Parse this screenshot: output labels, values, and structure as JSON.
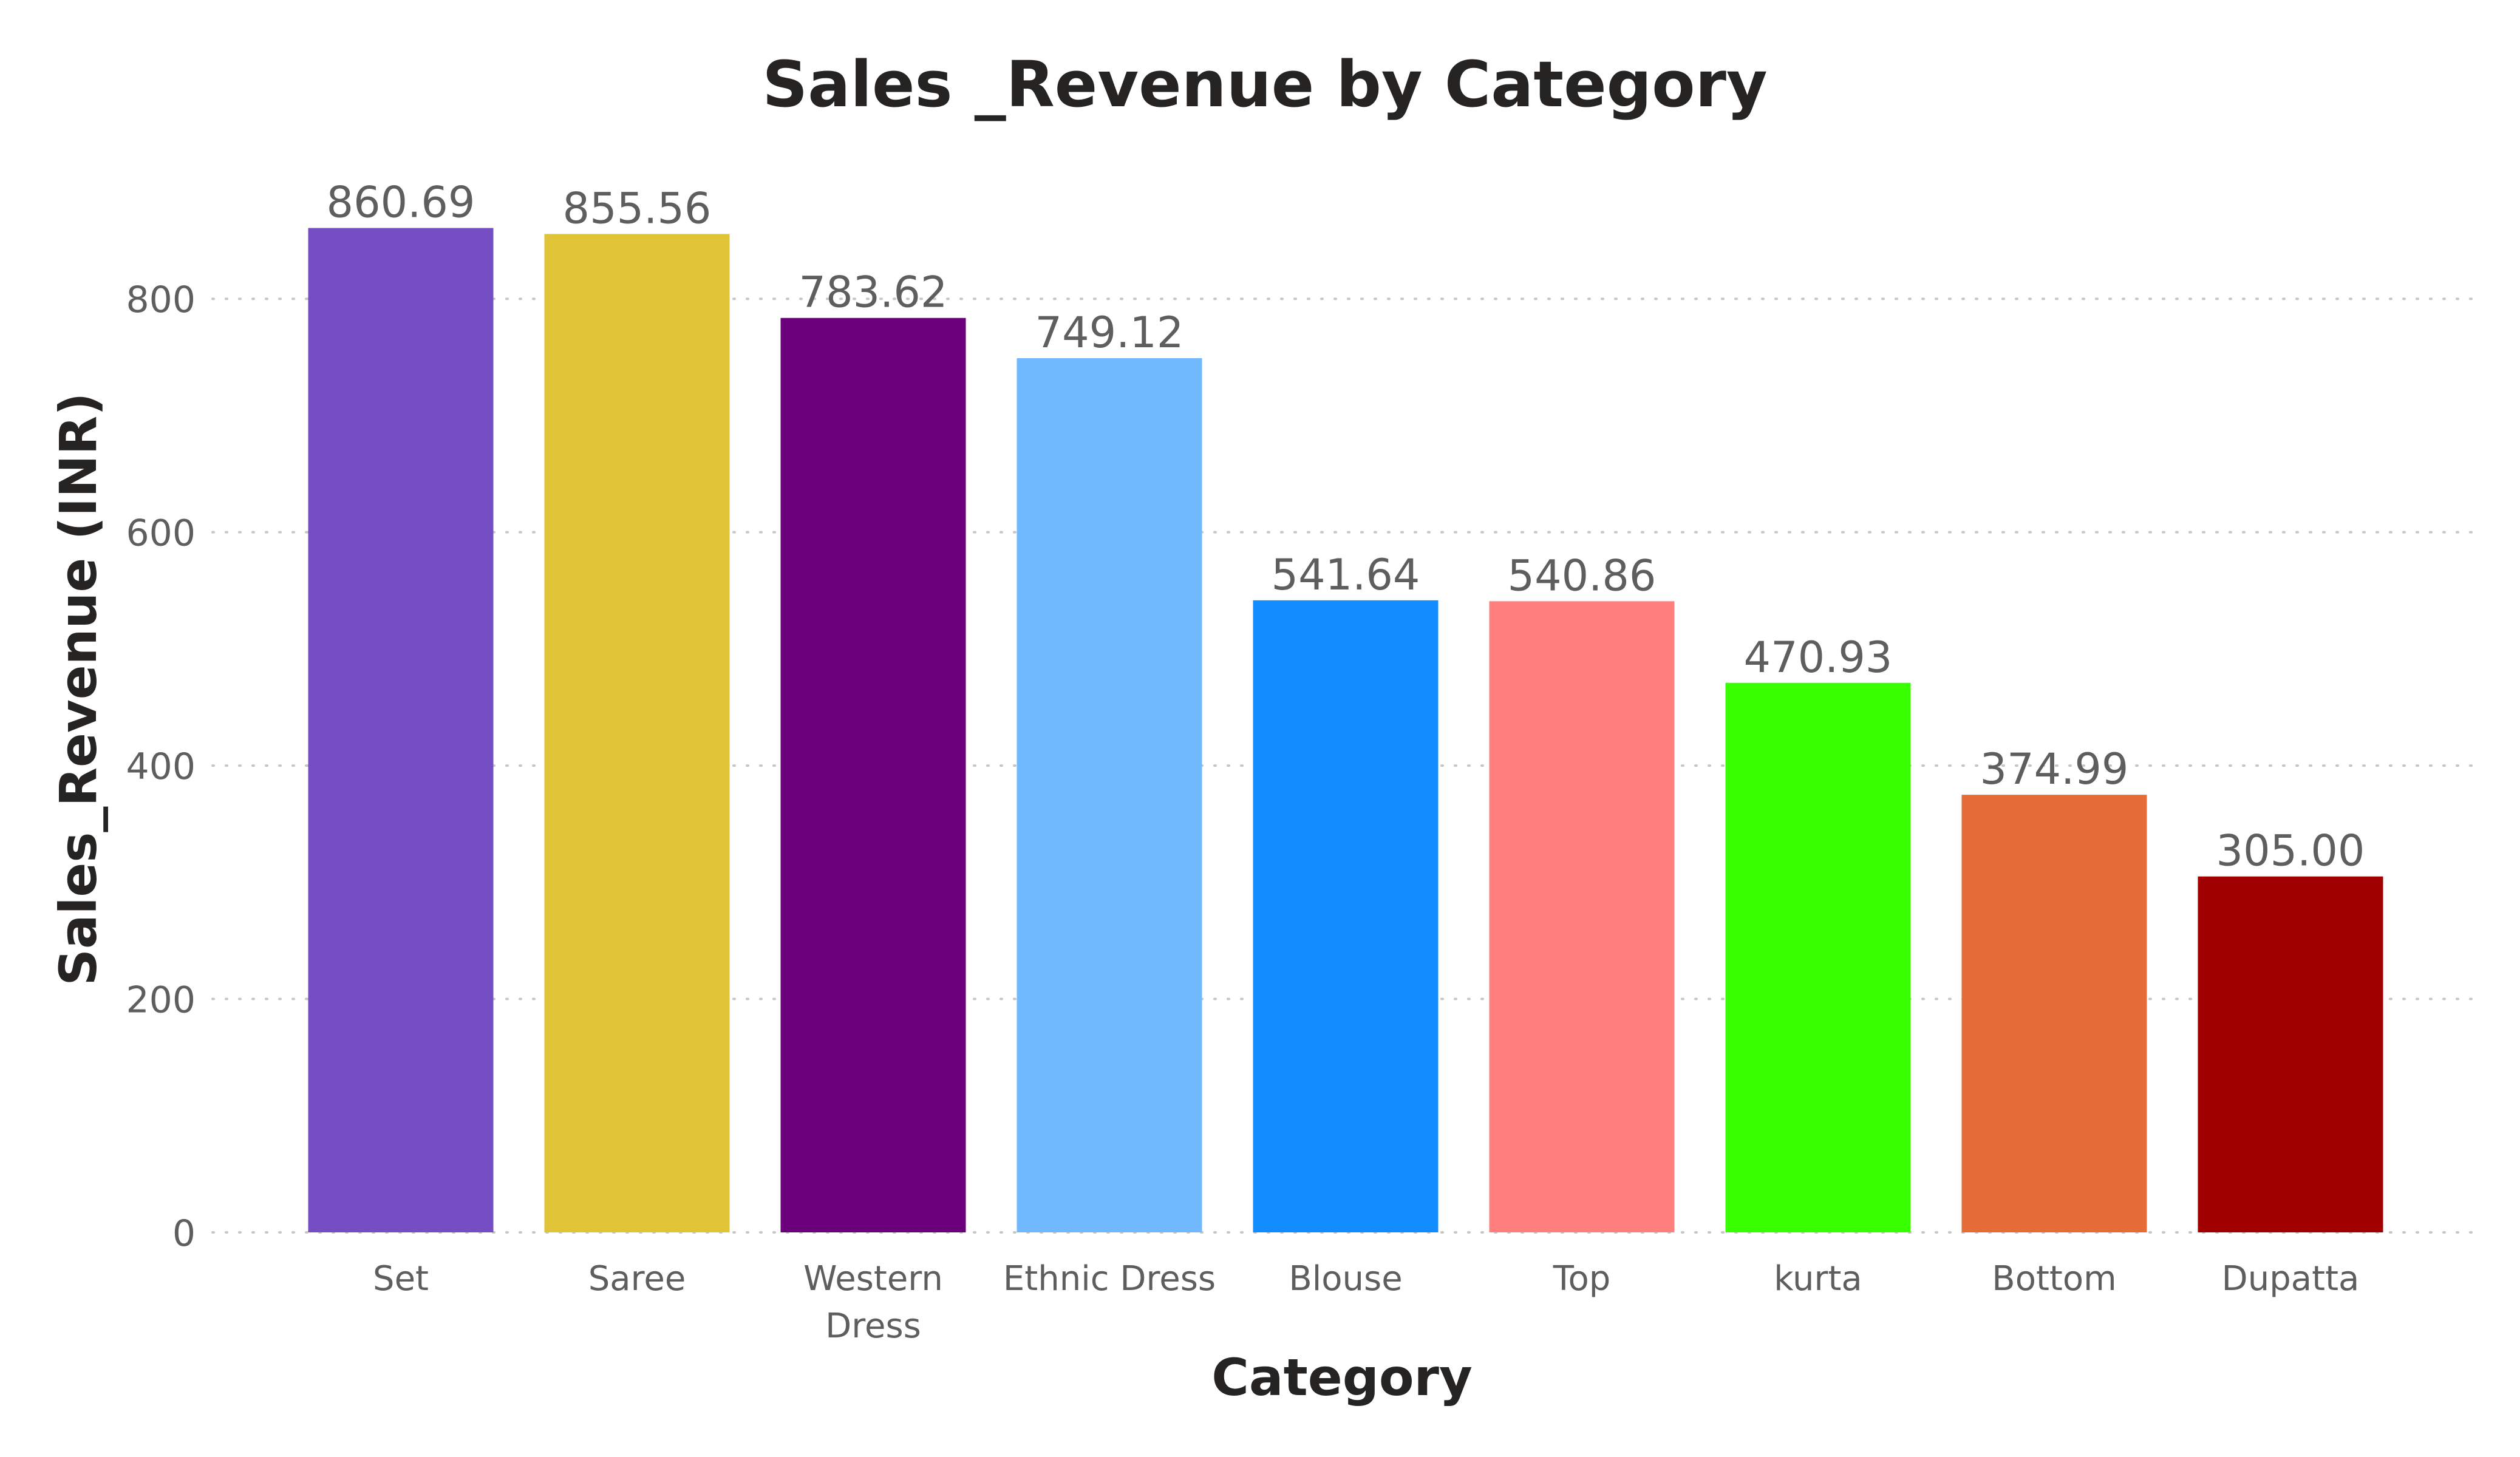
{
  "chart_data": {
    "type": "bar",
    "title": "Sales _Revenue by Category",
    "xlabel": "Category",
    "ylabel": "Sales_Revenue (INR)",
    "categories": [
      "Set",
      "Saree",
      "Western Dress",
      "Ethnic Dress",
      "Blouse",
      "Top",
      "kurta",
      "Bottom",
      "Dupatta"
    ],
    "values": [
      860.69,
      855.56,
      783.62,
      749.12,
      541.64,
      540.86,
      470.93,
      374.99,
      305.0
    ],
    "data_labels": [
      "860.69",
      "855.56",
      "783.62",
      "749.12",
      "541.64",
      "540.86",
      "470.93",
      "374.99",
      "305.00"
    ],
    "bar_colors": [
      "#744EC2",
      "#E0C336",
      "#6B007B",
      "#71B9FF",
      "#118DFF",
      "#FF7F7F",
      "#38FF00",
      "#E66C37",
      "#A00000"
    ],
    "y_ticks": [
      0,
      200,
      400,
      600,
      800
    ],
    "ylim": [
      0,
      900
    ],
    "grid": true,
    "legend": "none"
  }
}
